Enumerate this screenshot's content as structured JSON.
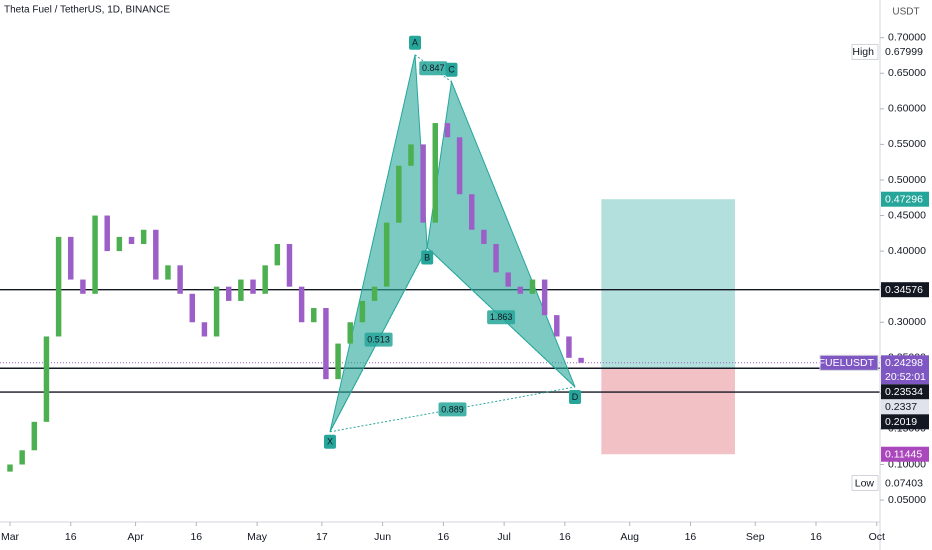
{
  "chart_data": {
    "type": "candlestick",
    "title": "Theta Fuel / TetherUS, 1D, BINANCE",
    "currency": "USDT",
    "x": [
      0,
      3,
      6,
      9,
      12,
      15,
      18,
      21,
      24,
      27,
      30,
      33,
      36,
      39,
      42,
      45,
      48,
      51,
      54,
      57,
      60,
      63,
      66,
      69,
      72,
      75,
      78,
      81,
      84,
      87,
      90,
      93,
      96,
      99,
      102,
      105,
      108,
      111,
      114,
      117,
      120,
      123,
      126,
      129,
      132,
      135,
      138,
      141
    ],
    "open": [
      0.09,
      0.1,
      0.12,
      0.16,
      0.28,
      0.42,
      0.36,
      0.34,
      0.45,
      0.4,
      0.42,
      0.41,
      0.43,
      0.36,
      0.38,
      0.34,
      0.3,
      0.28,
      0.35,
      0.33,
      0.36,
      0.34,
      0.38,
      0.41,
      0.35,
      0.3,
      0.32,
      0.22,
      0.27,
      0.3,
      0.33,
      0.35,
      0.44,
      0.52,
      0.55,
      0.44,
      0.58,
      0.56,
      0.48,
      0.43,
      0.41,
      0.37,
      0.35,
      0.34,
      0.36,
      0.31,
      0.28,
      0.25
    ],
    "high": {
      "label": "High",
      "value": 0.67999
    },
    "low": {
      "label": "Low",
      "value": 0.07403
    },
    "close": [
      0.1,
      0.12,
      0.16,
      0.28,
      0.42,
      0.36,
      0.34,
      0.45,
      0.4,
      0.42,
      0.41,
      0.43,
      0.36,
      0.38,
      0.34,
      0.3,
      0.28,
      0.35,
      0.33,
      0.36,
      0.34,
      0.38,
      0.41,
      0.35,
      0.3,
      0.32,
      0.22,
      0.27,
      0.3,
      0.33,
      0.35,
      0.44,
      0.52,
      0.55,
      0.44,
      0.58,
      0.56,
      0.48,
      0.43,
      0.41,
      0.37,
      0.35,
      0.34,
      0.36,
      0.31,
      0.28,
      0.25,
      0.243
    ],
    "up_color": "#4caf50",
    "down_color": "#9c5fc7",
    "xlim": [
      -2.47,
      214.8
    ],
    "xticks": [
      {
        "value": 0,
        "label": "Mar"
      },
      {
        "value": 15,
        "label": "16"
      },
      {
        "value": 31,
        "label": "Apr"
      },
      {
        "value": 46,
        "label": "16"
      },
      {
        "value": 61,
        "label": "May"
      },
      {
        "value": 77,
        "label": "17"
      },
      {
        "value": 92,
        "label": "Jun"
      },
      {
        "value": 107,
        "label": "16"
      },
      {
        "value": 122,
        "label": "Jul"
      },
      {
        "value": 137,
        "label": "16"
      },
      {
        "value": 153,
        "label": "Aug"
      },
      {
        "value": 168,
        "label": "16"
      },
      {
        "value": 184,
        "label": "Sep"
      },
      {
        "value": 199,
        "label": "16"
      },
      {
        "value": 214,
        "label": "Oct"
      }
    ],
    "ylim": [
      0.022,
      0.753
    ],
    "yticks": [
      {
        "value": 0.05,
        "label": "0.05000"
      },
      {
        "value": 0.1,
        "label": "0.10000"
      },
      {
        "value": 0.15,
        "label": "0.15000"
      },
      {
        "value": 0.2,
        "label": "0.20000"
      },
      {
        "value": 0.25,
        "label": "0.25000"
      },
      {
        "value": 0.3,
        "label": "0.30000"
      },
      {
        "value": 0.35,
        "label": "0.35000"
      },
      {
        "value": 0.4,
        "label": "0.40000"
      },
      {
        "value": 0.45,
        "label": "0.45000"
      },
      {
        "value": 0.5,
        "label": "0.50000"
      },
      {
        "value": 0.55,
        "label": "0.55000"
      },
      {
        "value": 0.6,
        "label": "0.60000"
      },
      {
        "value": 0.65,
        "label": "0.65000"
      },
      {
        "value": 0.7,
        "label": "0.70000"
      }
    ],
    "pattern": {
      "color": "#26a69a",
      "points": [
        {
          "label": "X",
          "x": 79,
          "y": 0.146
        },
        {
          "label": "A",
          "x": 100,
          "y": 0.676
        },
        {
          "label": "B",
          "x": 103,
          "y": 0.405
        },
        {
          "label": "C",
          "x": 109,
          "y": 0.638
        },
        {
          "label": "D",
          "x": 139.5,
          "y": 0.209
        }
      ],
      "ratios": [
        0.513,
        0.847,
        1.863,
        0.889
      ]
    },
    "levels": [
      0.34576,
      0.23534,
      0.2019
    ],
    "position": {
      "x": [
        146,
        179
      ],
      "target": 0.47296,
      "stop": 0.11445
    },
    "last": {
      "symbol": "TFUELUSDT",
      "value": 0.24298,
      "countdown": "20:52:01"
    },
    "marker": {
      "value": 0.2337
    }
  }
}
